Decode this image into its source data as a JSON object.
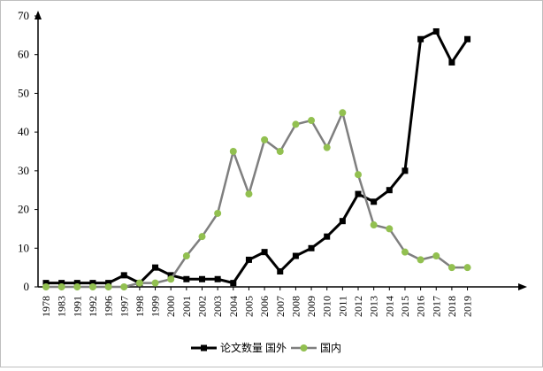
{
  "chart_data": {
    "type": "line",
    "title": "",
    "xlabel": "",
    "ylabel": "",
    "ylim": [
      0,
      70
    ],
    "yticks": [
      0,
      10,
      20,
      30,
      40,
      50,
      60,
      70
    ],
    "grid": false,
    "legend_position": "bottom",
    "categories": [
      "1978",
      "1983",
      "1991",
      "1992",
      "1996",
      "1997",
      "1998",
      "1999",
      "2000",
      "2001",
      "2002",
      "2003",
      "2004",
      "2005",
      "2006",
      "2007",
      "2008",
      "2009",
      "2010",
      "2011",
      "2012",
      "2013",
      "2014",
      "2015",
      "2016",
      "2017",
      "2018",
      "2019"
    ],
    "series": [
      {
        "name": "论文数量 国外",
        "color": "#000000",
        "marker": "square",
        "values": [
          1,
          1,
          1,
          1,
          1,
          3,
          1,
          5,
          3,
          2,
          2,
          2,
          1,
          7,
          9,
          4,
          8,
          10,
          13,
          17,
          24,
          22,
          25,
          30,
          64,
          66,
          58,
          64
        ]
      },
      {
        "name": "国内",
        "color": "#7f7f7f",
        "marker_color": "#92c050",
        "marker": "circle",
        "values": [
          0,
          0,
          0,
          0,
          0,
          0,
          1,
          1,
          2,
          8,
          13,
          19,
          35,
          24,
          38,
          35,
          42,
          43,
          36,
          45,
          29,
          16,
          15,
          9,
          7,
          8,
          5,
          5
        ]
      }
    ]
  }
}
